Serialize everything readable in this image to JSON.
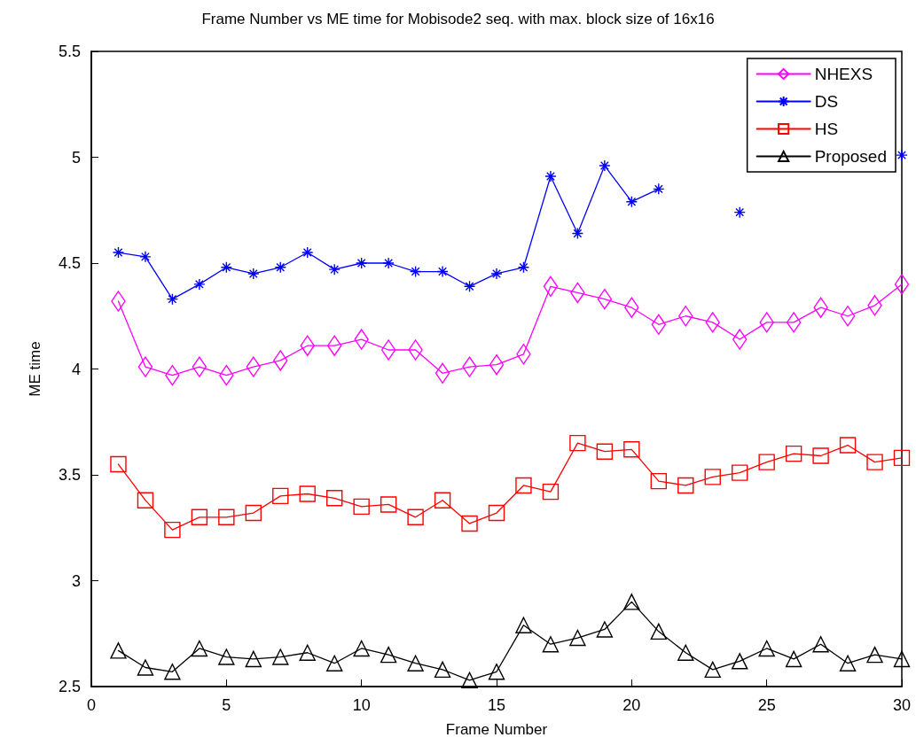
{
  "chart_data": {
    "type": "line",
    "title": "Frame Number vs ME time for Mobisode2 seq. with max. block size of 16x16",
    "xlabel": "Frame Number",
    "ylabel": "ME time",
    "x": [
      1,
      2,
      3,
      4,
      5,
      6,
      7,
      8,
      9,
      10,
      11,
      12,
      13,
      14,
      15,
      16,
      17,
      18,
      19,
      20,
      21,
      22,
      23,
      24,
      25,
      26,
      27,
      28,
      29,
      30
    ],
    "series": [
      {
        "name": "NHEXS",
        "color": "#ff00ff",
        "marker": "diamond",
        "values": [
          4.32,
          4.01,
          3.97,
          4.01,
          3.97,
          4.01,
          4.04,
          4.11,
          4.11,
          4.14,
          4.09,
          4.09,
          3.98,
          4.01,
          4.02,
          4.07,
          4.39,
          4.36,
          4.33,
          4.29,
          4.21,
          4.25,
          4.22,
          4.14,
          4.22,
          4.22,
          4.29,
          4.25,
          4.3,
          4.4
        ]
      },
      {
        "name": "DS",
        "color": "#0000ff",
        "marker": "cross",
        "values": [
          4.55,
          4.53,
          4.33,
          4.4,
          4.48,
          4.45,
          4.48,
          4.55,
          4.47,
          4.5,
          4.5,
          4.46,
          4.46,
          4.39,
          4.45,
          4.48,
          4.91,
          4.64,
          4.96,
          4.79,
          4.85,
          null,
          null,
          4.74,
          null,
          null,
          null,
          null,
          null,
          5.01
        ]
      },
      {
        "name": "HS",
        "color": "#ff0000",
        "marker": "square",
        "values": [
          3.55,
          3.38,
          3.24,
          3.3,
          3.3,
          3.32,
          3.4,
          3.41,
          3.39,
          3.35,
          3.36,
          3.3,
          3.38,
          3.27,
          3.32,
          3.45,
          3.42,
          3.65,
          3.61,
          3.62,
          3.47,
          3.45,
          3.49,
          3.51,
          3.56,
          3.6,
          3.59,
          3.64,
          3.56,
          3.58
        ]
      },
      {
        "name": "Proposed",
        "color": "#000000",
        "marker": "triangle",
        "values": [
          2.67,
          2.59,
          2.57,
          2.68,
          2.64,
          2.63,
          2.64,
          2.66,
          2.61,
          2.68,
          2.65,
          2.61,
          2.58,
          2.53,
          2.57,
          2.79,
          2.7,
          2.73,
          2.77,
          2.9,
          2.76,
          2.66,
          2.58,
          2.62,
          2.68,
          2.63,
          2.7,
          2.61,
          2.65,
          2.63
        ]
      }
    ],
    "xlim": [
      0,
      30
    ],
    "xticks": [
      0,
      5,
      10,
      15,
      20,
      25,
      30
    ],
    "ylim": [
      2.5,
      5.5
    ],
    "yticks": [
      2.5,
      3,
      3.5,
      4,
      4.5,
      5,
      5.5
    ],
    "grid": false,
    "legend": "top right",
    "line_style": "solid"
  }
}
